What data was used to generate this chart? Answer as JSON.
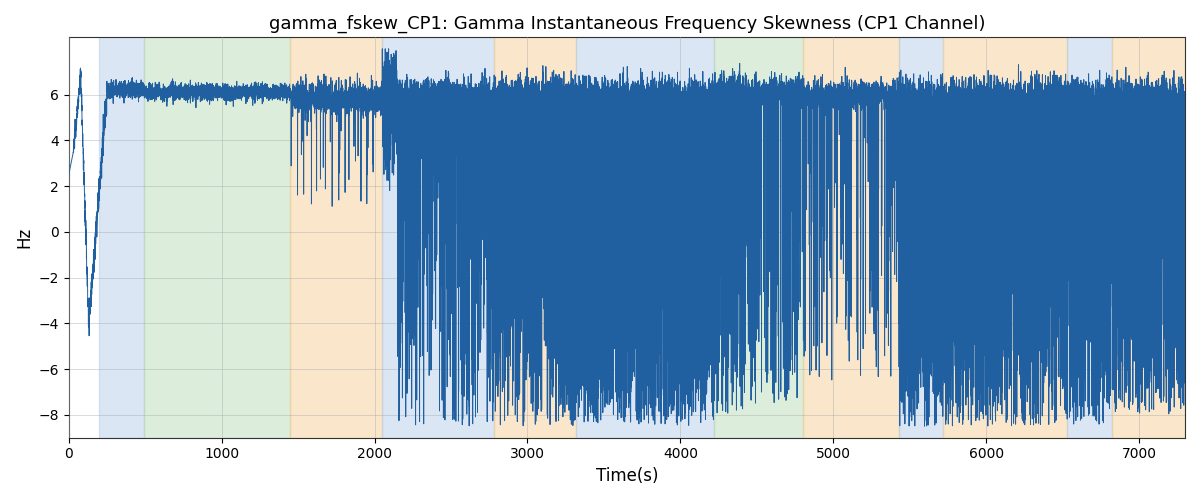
{
  "title": "gamma_fskew_CP1: Gamma Instantaneous Frequency Skewness (CP1 Channel)",
  "xlabel": "Time(s)",
  "ylabel": "Hz",
  "xlim": [
    0,
    7300
  ],
  "ylim": [
    -9,
    8.5
  ],
  "line_color": "#2060a0",
  "line_width": 0.7,
  "bg_color": "#ffffff",
  "figsize": [
    12,
    5
  ],
  "dpi": 100,
  "bands": [
    {
      "xmin": 200,
      "xmax": 490,
      "color": "#adc8e8",
      "alpha": 0.45
    },
    {
      "xmin": 490,
      "xmax": 1450,
      "color": "#b5d8b0",
      "alpha": 0.45
    },
    {
      "xmin": 1450,
      "xmax": 2050,
      "color": "#f5c98a",
      "alpha": 0.45
    },
    {
      "xmin": 2050,
      "xmax": 2780,
      "color": "#adc8e8",
      "alpha": 0.45
    },
    {
      "xmin": 2780,
      "xmax": 3320,
      "color": "#f5c98a",
      "alpha": 0.45
    },
    {
      "xmin": 3320,
      "xmax": 4220,
      "color": "#adc8e8",
      "alpha": 0.45
    },
    {
      "xmin": 4220,
      "xmax": 4800,
      "color": "#b5d8b0",
      "alpha": 0.45
    },
    {
      "xmin": 4800,
      "xmax": 5430,
      "color": "#f5c98a",
      "alpha": 0.45
    },
    {
      "xmin": 5430,
      "xmax": 5720,
      "color": "#adc8e8",
      "alpha": 0.45
    },
    {
      "xmin": 5720,
      "xmax": 6530,
      "color": "#f5c98a",
      "alpha": 0.45
    },
    {
      "xmin": 6530,
      "xmax": 6820,
      "color": "#adc8e8",
      "alpha": 0.45
    },
    {
      "xmin": 6820,
      "xmax": 7300,
      "color": "#f5c98a",
      "alpha": 0.45
    }
  ],
  "yticks": [
    -8,
    -6,
    -4,
    -2,
    0,
    2,
    4,
    6
  ],
  "xticks": [
    0,
    1000,
    2000,
    3000,
    4000,
    5000,
    6000,
    7000
  ],
  "grid_color": "#aaaaaa",
  "grid_alpha": 0.6,
  "grid_linewidth": 0.5
}
